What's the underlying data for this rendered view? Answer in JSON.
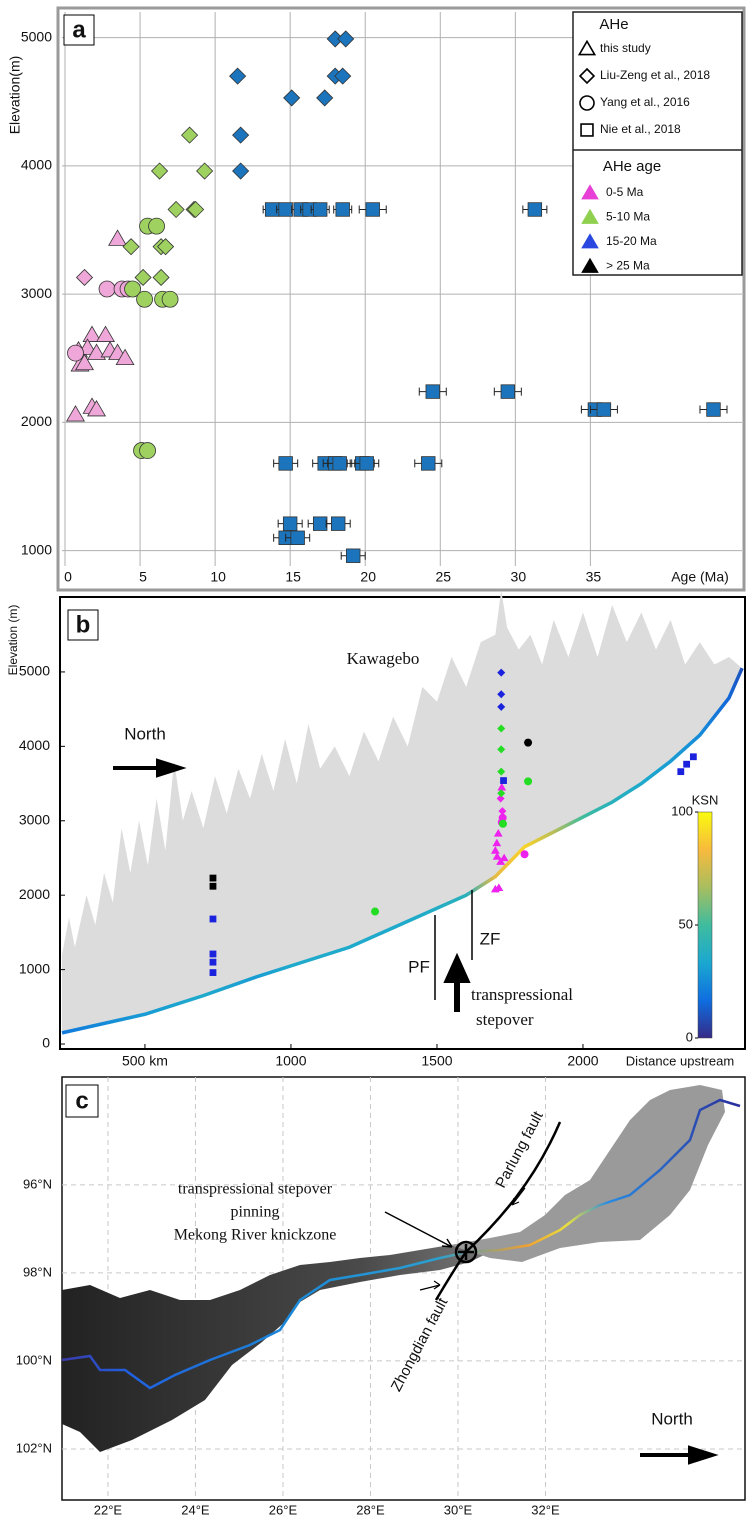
{
  "chart_data": [
    {
      "type": "scatter",
      "panel_label": "a",
      "xlabel": "Age (Ma)",
      "ylabel": "Elevation(m)",
      "xlim": [
        -0.2,
        45.1
      ],
      "ylim": [
        880,
        5200
      ],
      "xticks": [
        0,
        5,
        10,
        15,
        20,
        25,
        30,
        35
      ],
      "yticks": [
        1000,
        2000,
        3000,
        4000,
        5000
      ],
      "grid": true,
      "legend": {
        "title": "AHe",
        "entries": [
          {
            "label": "this study",
            "marker": "triangle"
          },
          {
            "label": "Liu-Zeng et al., 2018",
            "marker": "diamond"
          },
          {
            "label": "Yang et al., 2016",
            "marker": "circle"
          },
          {
            "label": "Nie et al., 2018",
            "marker": "square"
          }
        ]
      },
      "color_legend": {
        "title": "AHe age",
        "marker": "triangle",
        "entries": [
          {
            "label": "0-5 Ma",
            "color": "#e83fd6"
          },
          {
            "label": "5-10 Ma",
            "color": "#8fd14f"
          },
          {
            "label": "15-20 Ma",
            "color": "#2a48e0"
          },
          {
            "label": "> 25 Ma",
            "color": "#000000"
          }
        ]
      },
      "series": [
        {
          "marker": "triangle",
          "color": "#eea7d8",
          "x": [
            3.5,
            1.8,
            2.7,
            0.9,
            1.5,
            2.1,
            3.0,
            3.5,
            4.0,
            1.0,
            1.3,
            1.8,
            2.1,
            0.7
          ],
          "values": [
            3430,
            2680,
            2680,
            2560,
            2580,
            2540,
            2560,
            2540,
            2500,
            2450,
            2460,
            2120,
            2100,
            2060
          ]
        },
        {
          "marker": "circle",
          "color": "#eea7d8",
          "x": [
            2.8,
            3.8,
            4.2,
            0.7
          ],
          "values": [
            3040,
            3040,
            3040,
            2540
          ]
        },
        {
          "marker": "diamond",
          "color": "#eea7d8",
          "x": [
            1.3
          ],
          "values": [
            3130
          ]
        },
        {
          "marker": "circle",
          "color": "#9fd161",
          "x": [
            5.5,
            6.1,
            4.5,
            5.3,
            6.5,
            7.0,
            5.1,
            5.5
          ],
          "values": [
            3530,
            3530,
            3040,
            2960,
            2960,
            2960,
            1780,
            1780
          ]
        },
        {
          "marker": "diamond",
          "color": "#9fd161",
          "x": [
            8.3,
            6.3,
            9.3,
            7.4,
            8.6,
            8.7,
            4.4,
            6.4,
            6.7,
            5.2,
            6.4
          ],
          "values": [
            4240,
            3960,
            3960,
            3660,
            3660,
            3660,
            3370,
            3370,
            3370,
            3130,
            3130
          ]
        },
        {
          "marker": "diamond",
          "color": "#1c75bc",
          "x": [
            18.0,
            18.7,
            11.5,
            18.0,
            18.5,
            15.1,
            17.3,
            11.7,
            11.7
          ],
          "values": [
            4990,
            4990,
            4700,
            4700,
            4700,
            4530,
            4530,
            4240,
            3960
          ]
        },
        {
          "marker": "square",
          "color": "#1c75bc",
          "x": [
            13.8,
            14.7,
            15.7,
            16.3,
            17.0,
            18.5,
            20.5,
            31.3,
            24.5,
            29.5,
            35.3,
            35.9,
            43.2,
            14.7,
            17.3,
            18.0,
            18.3,
            19.8,
            20.1,
            24.2,
            15.0,
            17.0,
            18.2,
            14.7,
            15.5,
            19.2
          ],
          "values": [
            3660,
            3660,
            3660,
            3660,
            3660,
            3660,
            3660,
            3660,
            2240,
            2240,
            2100,
            2100,
            2100,
            1680,
            1680,
            1680,
            1680,
            1680,
            1680,
            1680,
            1210,
            1210,
            1210,
            1100,
            1100,
            960
          ],
          "xerr": [
            0.6,
            0.6,
            0.6,
            0.6,
            0.6,
            0.6,
            0.9,
            0.8,
            0.9,
            0.9,
            0.9,
            0.9,
            0.9,
            0.8,
            0.8,
            0.8,
            0.8,
            0.8,
            0.8,
            0.9,
            0.8,
            0.8,
            0.8,
            0.8,
            0.8,
            0.8
          ]
        }
      ]
    },
    {
      "type": "profile",
      "panel_label": "b",
      "xlabel": "Distance upstream",
      "ylabel": "Elevation (m)",
      "xlim": [
        216,
        2548
      ],
      "ylim": [
        -40,
        5980
      ],
      "xticks": [
        {
          "value": 500,
          "label": "500 km"
        },
        1000,
        1500,
        2000
      ],
      "yticks": [
        0,
        1000,
        2000,
        3000,
        4000,
        5000
      ],
      "peak_label": "Kawagebo",
      "direction_label": "North",
      "fault_labels": [
        "PF",
        "ZF"
      ],
      "stepover_label": [
        "transpressional",
        "stepover"
      ],
      "colorbar_label": "KSN",
      "ksn_lim": [
        0,
        100
      ],
      "ksn_ticks": [
        0,
        50,
        100
      ],
      "colormap": [
        "#352a87",
        "#0f6ee0",
        "#1ba8d0",
        "#3fbc9e",
        "#a8be5f",
        "#f8ba3d",
        "#f9fb0e"
      ],
      "ridge_color": "#dcdcdc",
      "ridge": {
        "x": [
          216,
          240,
          260,
          300,
          330,
          360,
          390,
          420,
          450,
          480,
          510,
          540,
          570,
          600,
          630,
          660,
          700,
          740,
          780,
          820,
          860,
          900,
          940,
          980,
          1020,
          1060,
          1100,
          1150,
          1200,
          1250,
          1300,
          1350,
          1400,
          1450,
          1500,
          1550,
          1600,
          1650,
          1700,
          1720,
          1740,
          1780,
          1820,
          1860,
          1900,
          1950,
          2000,
          2050,
          2100,
          2150,
          2200,
          2250,
          2300,
          2350,
          2400,
          2450,
          2500,
          2545
        ],
        "values": [
          1200,
          1700,
          1300,
          2000,
          1600,
          2300,
          1900,
          2900,
          2300,
          3000,
          2400,
          3300,
          2600,
          3800,
          3000,
          3400,
          2900,
          3600,
          3100,
          3700,
          3300,
          3900,
          3400,
          4100,
          3500,
          4300,
          3700,
          4000,
          3600,
          4200,
          3800,
          4400,
          4000,
          4800,
          4600,
          5200,
          4800,
          5400,
          5500,
          6100,
          5600,
          5300,
          5500,
          5100,
          5700,
          5200,
          5800,
          5200,
          5900,
          5400,
          5800,
          5300,
          5700,
          5100,
          5400,
          5100,
          5200,
          5050
        ]
      },
      "profile": {
        "x": [
          216,
          500,
          700,
          880,
          1000,
          1200,
          1400,
          1600,
          1700,
          1800,
          1900,
          2000,
          2100,
          2200,
          2300,
          2400,
          2500,
          2545
        ],
        "values": [
          150,
          400,
          650,
          900,
          1050,
          1300,
          1650,
          2000,
          2250,
          2650,
          2850,
          3050,
          3250,
          3500,
          3800,
          4150,
          4650,
          5050
        ],
        "ksn": [
          20,
          30,
          35,
          30,
          35,
          35,
          35,
          40,
          80,
          90,
          70,
          50,
          40,
          35,
          30,
          25,
          15,
          10
        ]
      },
      "series": [
        {
          "marker": "triangle",
          "color": "#ee22ee",
          "x": [
            1700,
            1712,
            1700,
            1705,
            1710,
            1730,
            1718,
            1706,
            1722
          ],
          "values": [
            2080,
            2100,
            2600,
            2700,
            2830,
            2500,
            2450,
            2520,
            3450
          ]
        },
        {
          "marker": "diamond",
          "color": "#ee22ee",
          "x": [
            1724,
            1718
          ],
          "values": [
            3130,
            3300
          ]
        },
        {
          "marker": "circle",
          "color": "#ee22ee",
          "x": [
            1725,
            1722,
            1800
          ],
          "values": [
            3040,
            2980,
            2550
          ]
        },
        {
          "marker": "diamond",
          "color": "#22dd22",
          "x": [
            1720,
            1720,
            1720,
            1720
          ],
          "values": [
            4240,
            3960,
            3660,
            3370
          ]
        },
        {
          "marker": "circle",
          "color": "#22dd22",
          "x": [
            1288,
            1812,
            1726
          ],
          "values": [
            1780,
            3530,
            2960
          ]
        },
        {
          "marker": "diamond",
          "color": "#1a22dd",
          "x": [
            1720,
            1720,
            1720
          ],
          "values": [
            4990,
            4700,
            4530
          ]
        },
        {
          "marker": "square",
          "color": "#1a22dd",
          "x": [
            733,
            733,
            733,
            733,
            1728,
            2335,
            2355,
            2378
          ],
          "values": [
            1680,
            1210,
            1100,
            960,
            3540,
            3660,
            3760,
            3860
          ]
        },
        {
          "marker": "square",
          "color": "#000000",
          "x": [
            733,
            733
          ],
          "values": [
            2230,
            2120
          ]
        },
        {
          "marker": "circle",
          "color": "#000000",
          "x": [
            1812
          ],
          "values": [
            4050
          ]
        }
      ]
    },
    {
      "type": "map",
      "panel_label": "c",
      "xlim": [
        20.95,
        36.56
      ],
      "ylim": [
        93.55,
        103.16
      ],
      "y_inverted": true,
      "grid": true,
      "xticks": [
        {
          "value": 22,
          "label": "22°E"
        },
        {
          "value": 24,
          "label": "24°E"
        },
        {
          "value": 26,
          "label": "26°E"
        },
        {
          "value": 28,
          "label": "28°E"
        },
        {
          "value": 30,
          "label": "30°E"
        },
        {
          "value": 32,
          "label": "32°E"
        }
      ],
      "yticks": [
        {
          "value": 96,
          "label": "96°N"
        },
        {
          "value": 98,
          "label": "98°N"
        },
        {
          "value": 100,
          "label": "100°N"
        },
        {
          "value": 102,
          "label": "102°N"
        }
      ],
      "stepover_note": [
        "transpressional stepover",
        "pinning",
        "Mekong River knickzone"
      ],
      "fault_names": [
        "Parlung fault",
        "Zhongdian fault"
      ],
      "direction_label": "North"
    }
  ]
}
